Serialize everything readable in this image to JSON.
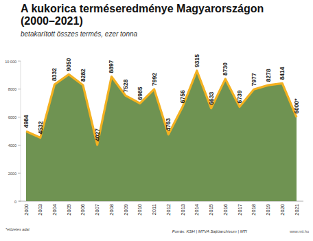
{
  "chart_data": {
    "type": "area",
    "title": "A kukorica terméseredménye Magyarországon (2000–2021)",
    "subtitle": "betakarított összes termés, ezer tonna",
    "categories": [
      "2000",
      "2003",
      "2004",
      "2005",
      "2006",
      "2007",
      "2008",
      "2009",
      "2010",
      "2011",
      "2012",
      "2013",
      "2014",
      "2015",
      "2016",
      "2017",
      "2018",
      "2019",
      "2020",
      "2021"
    ],
    "values": [
      4984,
      4532,
      8332,
      9050,
      8282,
      4027,
      8897,
      7528,
      6985,
      7992,
      4763,
      6756,
      9315,
      6633,
      8730,
      6739,
      7977,
      8278,
      8414,
      6000
    ],
    "value_labels": [
      "4984",
      "4532",
      "8332",
      "9050",
      "8282",
      "4027",
      "8897",
      "7528",
      "6985",
      "7992",
      "4763",
      "6756",
      "9315",
      "6633",
      "8730",
      "6739",
      "7977",
      "8278",
      "8414",
      "6000*"
    ],
    "color": "#f4b120",
    "ylim": [
      0,
      10000
    ],
    "yticks": [
      0,
      2000,
      4000,
      6000,
      8000,
      {
        "value": 10000,
        "label": "10 000"
      }
    ],
    "grid": false,
    "data_labels": true,
    "note": "*előzetes adat",
    "source": "Forrás: KSH | MTVA Sajtóarchívum | MTI",
    "credit": "www.mti.hu"
  }
}
